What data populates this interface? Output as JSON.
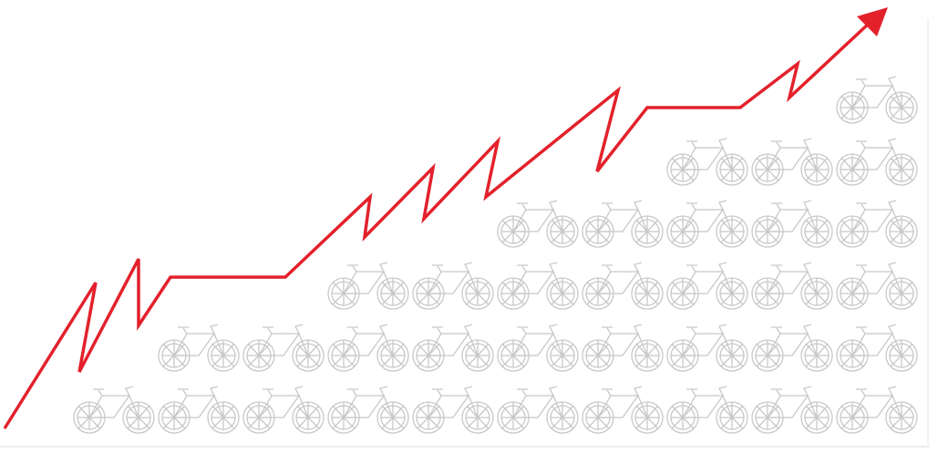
{
  "chart_data": {
    "type": "pictogram",
    "values": [
      1,
      2,
      2,
      3,
      3,
      4,
      4,
      5,
      5,
      6
    ],
    "color": "#c8c8c8"
  }
}
